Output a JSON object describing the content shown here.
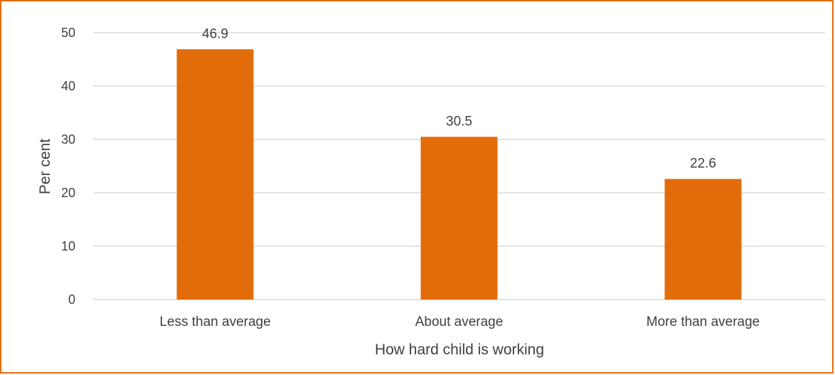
{
  "chart_data": {
    "type": "bar",
    "categories": [
      "Less than average",
      "About average",
      "More than average"
    ],
    "values": [
      46.9,
      30.5,
      22.6
    ],
    "data_labels": [
      "46.9",
      "30.5",
      "22.6"
    ],
    "title": "",
    "xlabel": "How hard child is working",
    "ylabel": "Per cent",
    "ylim": [
      0,
      50
    ],
    "yticks": [
      0,
      10,
      20,
      30,
      40,
      50
    ],
    "grid": true,
    "legend": "none",
    "colors": {
      "bar": "#E36C0A",
      "frame": "#E36C0A",
      "grid": "#D9D9D9",
      "text": "#404040"
    }
  }
}
